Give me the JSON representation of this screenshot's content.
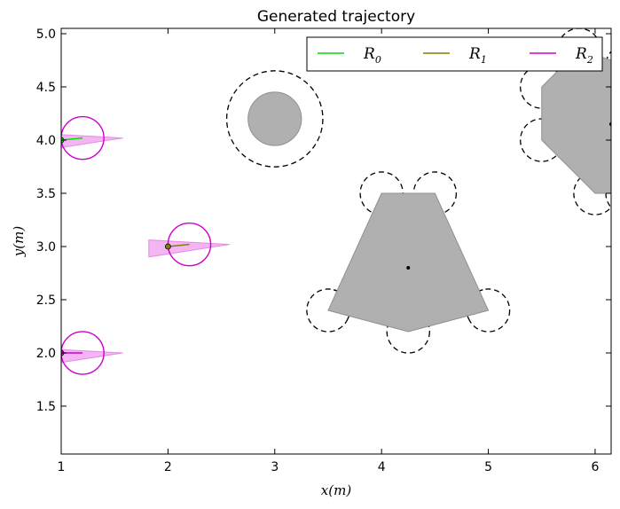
{
  "chart_data": {
    "type": "scatter",
    "title": "Generated trajectory",
    "xlabel": "x(m)",
    "ylabel": "y(m)",
    "xlim": [
      1.0,
      6.15
    ],
    "ylim": [
      1.05,
      5.05
    ],
    "x_ticks": [
      1,
      2,
      3,
      4,
      5,
      6
    ],
    "y_ticks": [
      1.5,
      2.0,
      2.5,
      3.0,
      3.5,
      4.0,
      4.5,
      5.0
    ],
    "x_tick_labels": [
      "1",
      "2",
      "3",
      "4",
      "5",
      "6"
    ],
    "y_tick_labels": [
      "1.5",
      "2.0",
      "2.5",
      "3.0",
      "3.5",
      "4.0",
      "4.5",
      "5.0"
    ],
    "legend_position": "top-right",
    "series": [
      {
        "name": "R",
        "subscript": "0",
        "color": "#00dd00",
        "start": [
          1.0,
          4.0
        ],
        "end": [
          1.2,
          4.02
        ]
      },
      {
        "name": "R",
        "subscript": "1",
        "color": "#808000",
        "start": [
          2.0,
          3.0
        ],
        "end": [
          2.2,
          3.02
        ]
      },
      {
        "name": "R",
        "subscript": "2",
        "color": "#cc00cc",
        "start": [
          1.0,
          2.0
        ],
        "end": [
          1.2,
          2.0
        ]
      }
    ],
    "robots": {
      "color": "#cc00cc",
      "fov_color": "#f2aef2",
      "radius": 0.2,
      "fov_range": 0.38,
      "fov_half_width": 0.07,
      "items": [
        {
          "x": 1.2,
          "y": 4.02
        },
        {
          "x": 2.2,
          "y": 3.02
        },
        {
          "x": 1.2,
          "y": 2.0
        }
      ]
    },
    "obstacles": [
      {
        "shape": "circle",
        "center": [
          3.0,
          4.2
        ],
        "radius": 0.25,
        "safety_radius": 0.45
      },
      {
        "shape": "polygon",
        "vertices": [
          [
            4.0,
            3.5
          ],
          [
            4.5,
            3.5
          ],
          [
            5.0,
            2.4
          ],
          [
            4.25,
            2.2
          ],
          [
            3.5,
            2.4
          ]
        ],
        "safety_radius": 0.2,
        "center": [
          4.25,
          2.8
        ]
      },
      {
        "shape": "polygon",
        "vertices": [
          [
            5.5,
            4.5
          ],
          [
            5.85,
            4.85
          ],
          [
            6.3,
            4.7
          ],
          [
            6.3,
            3.5
          ],
          [
            6.0,
            3.5
          ],
          [
            5.5,
            4.0
          ]
        ],
        "safety_radius": 0.2,
        "center": [
          6.15,
          4.15
        ]
      }
    ],
    "obstacle_fill": "#b0b0b0",
    "obstacle_edge": "#909090"
  }
}
